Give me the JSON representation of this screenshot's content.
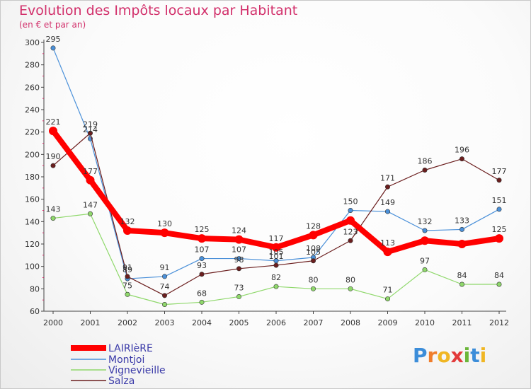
{
  "chart_data": {
    "type": "line",
    "title": "Evolution des Impôts locaux par Habitant",
    "subtitle": "(en € et par an)",
    "x": [
      "2000",
      "2001",
      "2002",
      "2003",
      "2004",
      "2005",
      "2006",
      "2007",
      "2008",
      "2009",
      "2010",
      "2011",
      "2012"
    ],
    "ylim": [
      60,
      300
    ],
    "yticks": [
      "60",
      "80",
      "100",
      "120",
      "140",
      "160",
      "180",
      "200",
      "220",
      "240",
      "260",
      "280",
      "300"
    ],
    "grid": false,
    "legend_position": "bottom-left",
    "series": [
      {
        "name": "LAIRIèRE",
        "color": "#ff0000",
        "values": [
          221,
          177,
          132,
          130,
          125,
          124,
          117,
          128,
          141,
          113,
          123,
          120,
          125
        ],
        "labels": [
          "221",
          "177",
          "132",
          "130",
          "125",
          "124",
          "117",
          "128",
          "",
          "113",
          "",
          "",
          "125"
        ]
      },
      {
        "name": "Montjoi",
        "color": "#4a90d9",
        "values": [
          295,
          214,
          89,
          91,
          107,
          107,
          105,
          108,
          150,
          149,
          132,
          133,
          151
        ],
        "labels": [
          "295",
          "214",
          "89",
          "91",
          "107",
          "107",
          "105",
          "108",
          "150",
          "149",
          "132",
          "133",
          "151"
        ]
      },
      {
        "name": "Vignevieille",
        "color": "#8fd86b",
        "values": [
          143,
          147,
          75,
          66,
          68,
          73,
          82,
          80,
          80,
          71,
          97,
          84,
          84
        ],
        "labels": [
          "143",
          "147",
          "75",
          "",
          "68",
          "73",
          "82",
          "80",
          "80",
          "71",
          "97",
          "84",
          "84"
        ]
      },
      {
        "name": "Salza",
        "color": "#6b1e1e",
        "values": [
          190,
          219,
          91,
          74,
          93,
          98,
          101,
          105,
          123,
          171,
          186,
          196,
          177
        ],
        "labels": [
          "190",
          "219",
          "91",
          "74",
          "93",
          "98",
          "101",
          "105",
          "123",
          "171",
          "186",
          "196",
          "177"
        ]
      }
    ]
  },
  "logo": {
    "letters": [
      "P",
      "r",
      "o",
      "x",
      "i",
      "t",
      "i"
    ],
    "colors": [
      "#3c8dd9",
      "#f07d2b",
      "#f0b623",
      "#e23a3a",
      "#6bb63a",
      "#3c8dd9",
      "#f0b623"
    ]
  }
}
